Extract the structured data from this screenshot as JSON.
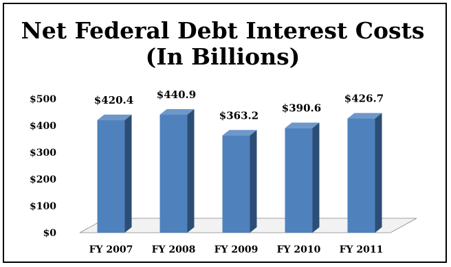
{
  "chart_data": {
    "type": "bar",
    "title": "Net Federal Debt Interest Costs",
    "subtitle": "(In Billions)",
    "categories": [
      "FY 2007",
      "FY 2008",
      "FY 2009",
      "FY 2010",
      "FY 2011"
    ],
    "values": [
      420.4,
      440.9,
      363.2,
      390.6,
      426.7
    ],
    "data_labels": [
      "$420.4",
      "$440.9",
      "$363.2",
      "$390.6",
      "$426.7"
    ],
    "y_ticks": [
      0,
      100,
      200,
      300,
      400,
      500
    ],
    "y_tick_labels": [
      "$0",
      "$100",
      "$200",
      "$300",
      "$400",
      "$500"
    ],
    "ylim": [
      0,
      500
    ],
    "xlabel": "",
    "ylabel": "",
    "grid": false,
    "legend": "none",
    "style": "3d-column",
    "colors": {
      "bar_front": "#4f81bd",
      "bar_side": "#2c4d75",
      "bar_top": "#6e97ca",
      "floor": "#f2f2f2"
    }
  }
}
